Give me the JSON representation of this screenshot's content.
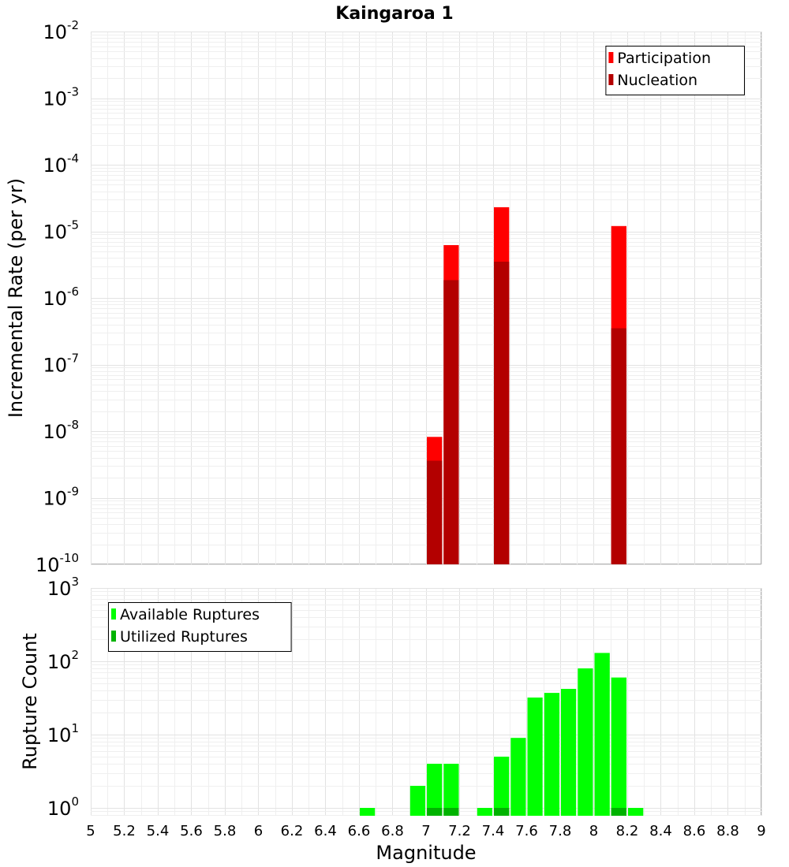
{
  "chart_data": {
    "title": "Kaingaroa 1",
    "xlabel": "Magnitude",
    "xlim": [
      5,
      9
    ],
    "xticks": [
      "5",
      "5.2",
      "5.4",
      "5.6",
      "5.8",
      "6",
      "6.2",
      "6.4",
      "6.6",
      "6.8",
      "7",
      "7.2",
      "7.4",
      "7.6",
      "7.8",
      "8",
      "8.2",
      "8.4",
      "8.6",
      "8.8",
      "9"
    ],
    "bin_width": 0.1,
    "panels": [
      {
        "type": "bar",
        "yscale": "log",
        "ylabel": "Incremental Rate (per yr)",
        "ylim": [
          1e-10,
          0.01
        ],
        "yticks": [
          {
            "base": "10",
            "exp": "-10"
          },
          {
            "base": "10",
            "exp": "-9"
          },
          {
            "base": "10",
            "exp": "-8"
          },
          {
            "base": "10",
            "exp": "-7"
          },
          {
            "base": "10",
            "exp": "-6"
          },
          {
            "base": "10",
            "exp": "-5"
          },
          {
            "base": "10",
            "exp": "-4"
          },
          {
            "base": "10",
            "exp": "-3"
          },
          {
            "base": "10",
            "exp": "-2"
          }
        ],
        "legend_position": "top-right",
        "series": [
          {
            "name": "Participation",
            "color": "#ff0000",
            "x": [
              7.05,
              7.15,
              7.45,
              8.15
            ],
            "values": [
              8.2e-09,
              6.2e-06,
              2.3e-05,
              1.2e-05
            ]
          },
          {
            "name": "Nucleation",
            "color": "#b30000",
            "x": [
              7.05,
              7.15,
              7.45,
              8.15
            ],
            "values": [
              3.6e-09,
              1.85e-06,
              3.5e-06,
              3.5e-07
            ]
          }
        ]
      },
      {
        "type": "bar",
        "yscale": "log",
        "ylabel": "Rupture Count",
        "ylim": [
          0.78,
          1000
        ],
        "yticks": [
          {
            "base": "10",
            "exp": "0"
          },
          {
            "base": "10",
            "exp": "1"
          },
          {
            "base": "10",
            "exp": "2"
          },
          {
            "base": "10",
            "exp": "3"
          }
        ],
        "legend_position": "top-left",
        "series": [
          {
            "name": "Available Ruptures",
            "color": "#00ff00",
            "x": [
              6.65,
              6.95,
              7.05,
              7.15,
              7.35,
              7.45,
              7.55,
              7.65,
              7.75,
              7.85,
              7.95,
              8.05,
              8.15,
              8.25
            ],
            "values": [
              1,
              2,
              4,
              4,
              1,
              5,
              9,
              32,
              37,
              42,
              80,
              130,
              60,
              1
            ]
          },
          {
            "name": "Utilized Ruptures",
            "color": "#00b300",
            "x": [
              7.05,
              7.15,
              7.45,
              8.15
            ],
            "values": [
              1,
              1,
              1,
              1
            ]
          }
        ]
      }
    ]
  }
}
